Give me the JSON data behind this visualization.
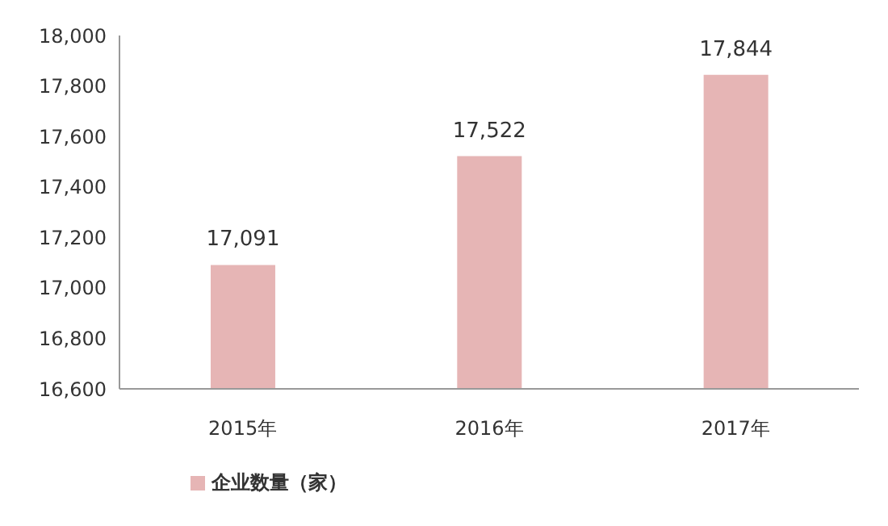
{
  "chart_data": {
    "type": "bar",
    "categories": [
      "2015年",
      "2016年",
      "2017年"
    ],
    "series": [
      {
        "name": "企业数量（家）",
        "color": "#e6b5b5",
        "values": [
          17091,
          17522,
          17844
        ],
        "value_labels": [
          "17,091",
          "17,522",
          "17,844"
        ]
      }
    ],
    "ylim": [
      16600,
      18000
    ],
    "yticks": [
      {
        "value": 16600,
        "label": "16,600"
      },
      {
        "value": 16800,
        "label": "16,800"
      },
      {
        "value": 17000,
        "label": "17,000"
      },
      {
        "value": 17200,
        "label": "17,200"
      },
      {
        "value": 17400,
        "label": "17,400"
      },
      {
        "value": 17600,
        "label": "17,600"
      },
      {
        "value": 17800,
        "label": "17,800"
      },
      {
        "value": 18000,
        "label": "18,000"
      }
    ],
    "grid": false,
    "legend": "bottom"
  }
}
